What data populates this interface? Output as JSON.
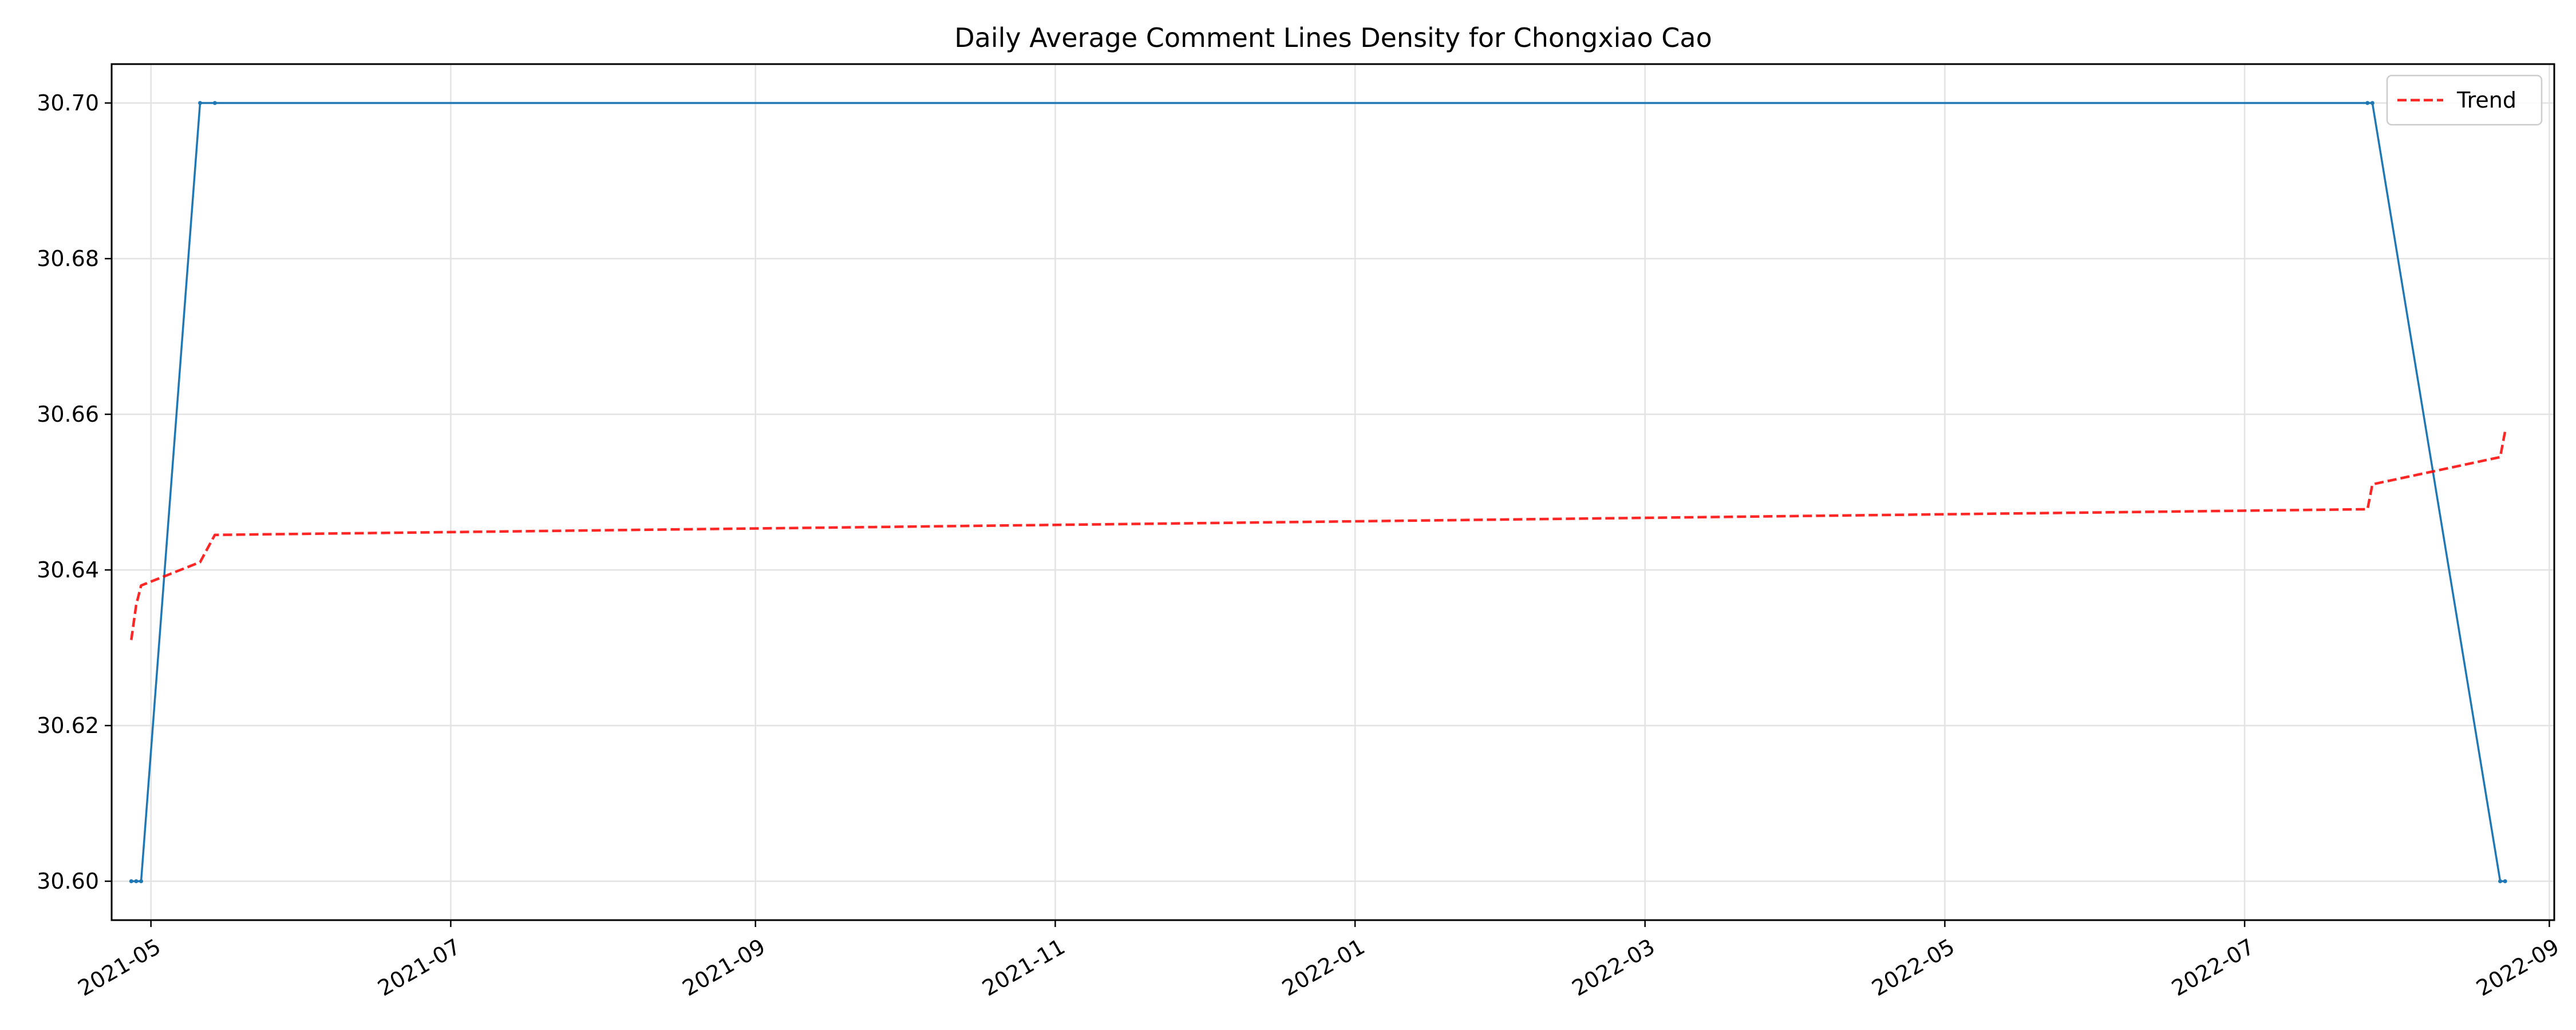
{
  "chart_data": {
    "type": "line",
    "title": "Daily Average Comment Lines Density for Chongxiao Cao",
    "xlabel": "",
    "ylabel": "",
    "x_type": "date",
    "xlim": [
      "2021-04-23",
      "2022-09-02"
    ],
    "ylim": [
      30.595,
      30.705
    ],
    "grid": true,
    "legend_placement": "top-right",
    "x_ticks": [
      "2021-05-01",
      "2021-07-01",
      "2021-09-01",
      "2021-11-01",
      "2022-01-01",
      "2022-03-01",
      "2022-05-01",
      "2022-07-01",
      "2022-09-01"
    ],
    "x_tick_labels": [
      "2021-05",
      "2021-07",
      "2021-09",
      "2021-11",
      "2022-01",
      "2022-03",
      "2022-05",
      "2022-07",
      "2022-09"
    ],
    "y_ticks": [
      30.6,
      30.62,
      30.64,
      30.66,
      30.68,
      30.7
    ],
    "y_tick_labels": [
      "30.60",
      "30.62",
      "30.64",
      "30.66",
      "30.68",
      "30.70"
    ],
    "series": [
      {
        "color": "#1f77b4",
        "style": "solid",
        "points": [
          {
            "x": "2021-04-27",
            "y": 30.6
          },
          {
            "x": "2021-04-28",
            "y": 30.6
          },
          {
            "x": "2021-04-29",
            "y": 30.6
          },
          {
            "x": "2021-05-11",
            "y": 30.7
          },
          {
            "x": "2021-05-14",
            "y": 30.7
          },
          {
            "x": "2022-07-26",
            "y": 30.7
          },
          {
            "x": "2022-07-27",
            "y": 30.7
          },
          {
            "x": "2022-08-22",
            "y": 30.6
          },
          {
            "x": "2022-08-23",
            "y": 30.6
          }
        ]
      },
      {
        "name": "Trend",
        "color": "#ff0000",
        "style": "dashed",
        "points": [
          {
            "x": "2021-04-27",
            "y": 30.631
          },
          {
            "x": "2021-04-28",
            "y": 30.6355
          },
          {
            "x": "2021-04-29",
            "y": 30.638
          },
          {
            "x": "2021-05-11",
            "y": 30.641
          },
          {
            "x": "2021-05-14",
            "y": 30.6445
          },
          {
            "x": "2022-07-26",
            "y": 30.6478
          },
          {
            "x": "2022-07-27",
            "y": 30.651
          },
          {
            "x": "2022-08-22",
            "y": 30.6545
          },
          {
            "x": "2022-08-23",
            "y": 30.6578
          }
        ]
      }
    ]
  }
}
